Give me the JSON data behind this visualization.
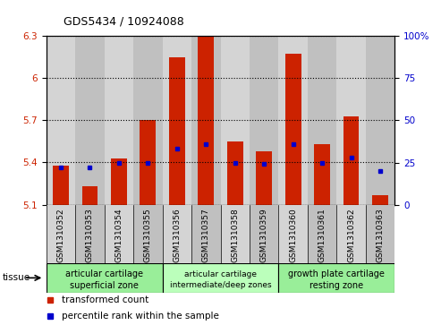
{
  "title": "GDS5434 / 10924088",
  "samples": [
    "GSM1310352",
    "GSM1310353",
    "GSM1310354",
    "GSM1310355",
    "GSM1310356",
    "GSM1310357",
    "GSM1310358",
    "GSM1310359",
    "GSM1310360",
    "GSM1310361",
    "GSM1310362",
    "GSM1310363"
  ],
  "red_values": [
    5.38,
    5.23,
    5.43,
    5.7,
    6.15,
    6.3,
    5.55,
    5.48,
    6.17,
    5.53,
    5.73,
    5.17
  ],
  "blue_values_pct": [
    22,
    22,
    25,
    25,
    33,
    36,
    25,
    24,
    36,
    25,
    28,
    20
  ],
  "ylim": [
    5.1,
    6.3
  ],
  "y2lim": [
    0,
    100
  ],
  "yticks_left": [
    5.1,
    5.4,
    5.7,
    6.0,
    6.3
  ],
  "yticks_right": [
    0,
    25,
    50,
    75,
    100
  ],
  "ytick_labels_left": [
    "5.1",
    "5.4",
    "5.7",
    "6",
    "6.3"
  ],
  "ytick_labels_right": [
    "0",
    "25",
    "50",
    "75",
    "100%"
  ],
  "bar_bottom": 5.1,
  "bar_color": "#cc2200",
  "blue_color": "#0000cc",
  "grid_color": "#000000",
  "col_bg_even": "#d4d4d4",
  "col_bg_odd": "#c0c0c0",
  "tissue_groups": [
    {
      "label": "articular cartilage\nsuperficial zone",
      "start": 0,
      "end": 4,
      "color": "#99ee99",
      "fontsize": 7,
      "font2size": 7
    },
    {
      "label": "articular cartilage\nintermediate/deep zones",
      "start": 4,
      "end": 8,
      "color": "#bbffbb",
      "fontsize": 6.5,
      "font2size": 6.5
    },
    {
      "label": "growth plate cartilage\nresting zone",
      "start": 8,
      "end": 12,
      "color": "#99ee99",
      "fontsize": 7,
      "font2size": 7
    }
  ],
  "legend_red_label": "transformed count",
  "legend_blue_label": "percentile rank within the sample",
  "tissue_label": "tissue",
  "bar_width": 0.55,
  "left_label_color": "#cc2200",
  "right_label_color": "#0000cc",
  "title_fontsize": 9
}
